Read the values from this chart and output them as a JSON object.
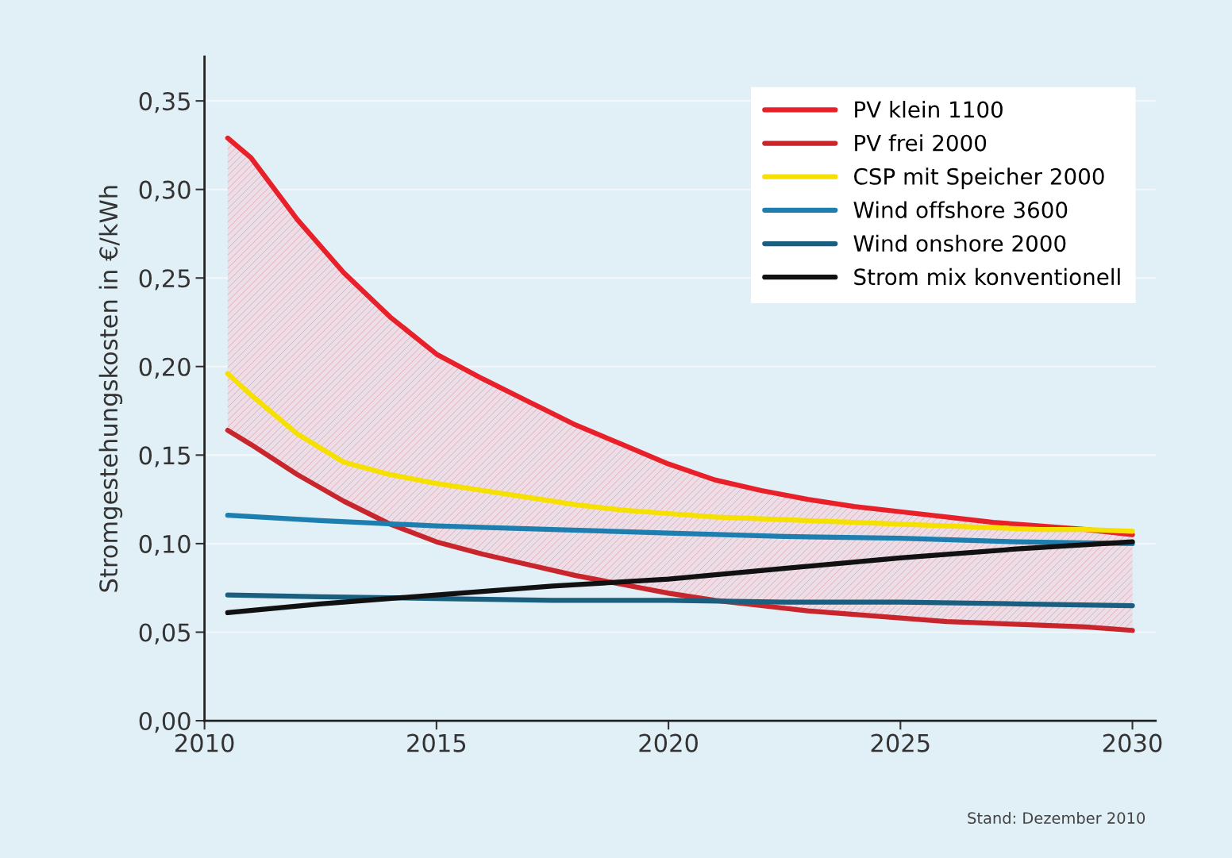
{
  "chart_data": {
    "type": "line",
    "ylabel": "Stromgestehungskosten in €/kWh",
    "annotations": [
      "Stand: Dezember 2010"
    ],
    "xlim": [
      2010,
      2030.5
    ],
    "xticks": [
      2010,
      2015,
      2020,
      2025,
      2030
    ],
    "ylim": [
      0,
      0.375
    ],
    "yticks": [
      {
        "value": 0,
        "label": "0,00"
      },
      {
        "value": 0.05,
        "label": "0,05"
      },
      {
        "value": 0.1,
        "label": "0,10"
      },
      {
        "value": 0.15,
        "label": "0,15"
      },
      {
        "value": 0.2,
        "label": "0,20"
      },
      {
        "value": 0.25,
        "label": "0,25"
      },
      {
        "value": 0.3,
        "label": "0,30"
      },
      {
        "value": 0.35,
        "label": "0,35"
      }
    ],
    "grid": "y",
    "legend": "top right",
    "marker": "none",
    "line_style": "solid",
    "series": [
      {
        "name": "PV klein 1100",
        "color": "#e8202a",
        "x": [
          2010.5,
          2011,
          2012,
          2013,
          2014,
          2015,
          2016,
          2017,
          2018,
          2019,
          2020,
          2021,
          2022,
          2023,
          2024,
          2025,
          2026,
          2027,
          2028,
          2029,
          2030
        ],
        "values": [
          0.329,
          0.318,
          0.283,
          0.253,
          0.228,
          0.207,
          0.193,
          0.18,
          0.167,
          0.156,
          0.145,
          0.136,
          0.13,
          0.125,
          0.121,
          0.118,
          0.115,
          0.112,
          0.11,
          0.108,
          0.105
        ],
        "lower": [
          0.164,
          0.156,
          0.139,
          0.124,
          0.111,
          0.101,
          0.094,
          0.088,
          0.082,
          0.077,
          0.072,
          0.068,
          0.065,
          0.062,
          0.06,
          0.058,
          0.056,
          0.055,
          0.054,
          0.053,
          0.051
        ],
        "upper": [
          0.329,
          0.318,
          0.283,
          0.253,
          0.228,
          0.207,
          0.193,
          0.18,
          0.167,
          0.156,
          0.145,
          0.136,
          0.13,
          0.125,
          0.121,
          0.118,
          0.115,
          0.112,
          0.11,
          0.108,
          0.105
        ]
      },
      {
        "name": "PV frei 2000",
        "color": "#c8262c",
        "x": [
          2010.5,
          2011,
          2012,
          2013,
          2014,
          2015,
          2016,
          2017,
          2018,
          2019,
          2020,
          2021,
          2022,
          2023,
          2024,
          2025,
          2026,
          2027,
          2028,
          2029,
          2030
        ],
        "values": [
          0.164,
          0.156,
          0.139,
          0.124,
          0.111,
          0.101,
          0.094,
          0.088,
          0.082,
          0.077,
          0.072,
          0.068,
          0.065,
          0.062,
          0.06,
          0.058,
          0.056,
          0.055,
          0.054,
          0.053,
          0.051
        ]
      },
      {
        "name": "CSP mit Speicher 2000",
        "color": "#f5e000",
        "x": [
          2010.5,
          2011,
          2012,
          2013,
          2014,
          2015,
          2016,
          2017,
          2018,
          2019,
          2020,
          2021,
          2022,
          2023,
          2024,
          2025,
          2026,
          2027,
          2028,
          2029,
          2030
        ],
        "values": [
          0.196,
          0.184,
          0.162,
          0.146,
          0.139,
          0.134,
          0.13,
          0.126,
          0.122,
          0.119,
          0.117,
          0.115,
          0.114,
          0.113,
          0.112,
          0.111,
          0.11,
          0.109,
          0.108,
          0.108,
          0.107
        ]
      },
      {
        "name": "Wind offshore 3600",
        "color": "#1d7fb0",
        "x": [
          2010.5,
          2012.5,
          2015,
          2017.5,
          2020,
          2022.5,
          2025,
          2027.5,
          2030
        ],
        "values": [
          0.116,
          0.113,
          0.11,
          0.108,
          0.106,
          0.104,
          0.103,
          0.101,
          0.1
        ]
      },
      {
        "name": "Wind onshore 2000",
        "color": "#1a5f7f",
        "x": [
          2010.5,
          2012.5,
          2015,
          2017.5,
          2020,
          2022.5,
          2025,
          2027.5,
          2030
        ],
        "values": [
          0.071,
          0.07,
          0.069,
          0.068,
          0.068,
          0.067,
          0.067,
          0.066,
          0.065
        ]
      },
      {
        "name": "Strom mix konventionell",
        "color": "#111111",
        "x": [
          2010.5,
          2012.5,
          2015,
          2017.5,
          2020,
          2022.5,
          2025,
          2027.5,
          2030
        ],
        "values": [
          0.061,
          0.066,
          0.071,
          0.076,
          0.08,
          0.086,
          0.092,
          0.097,
          0.101
        ]
      }
    ]
  }
}
